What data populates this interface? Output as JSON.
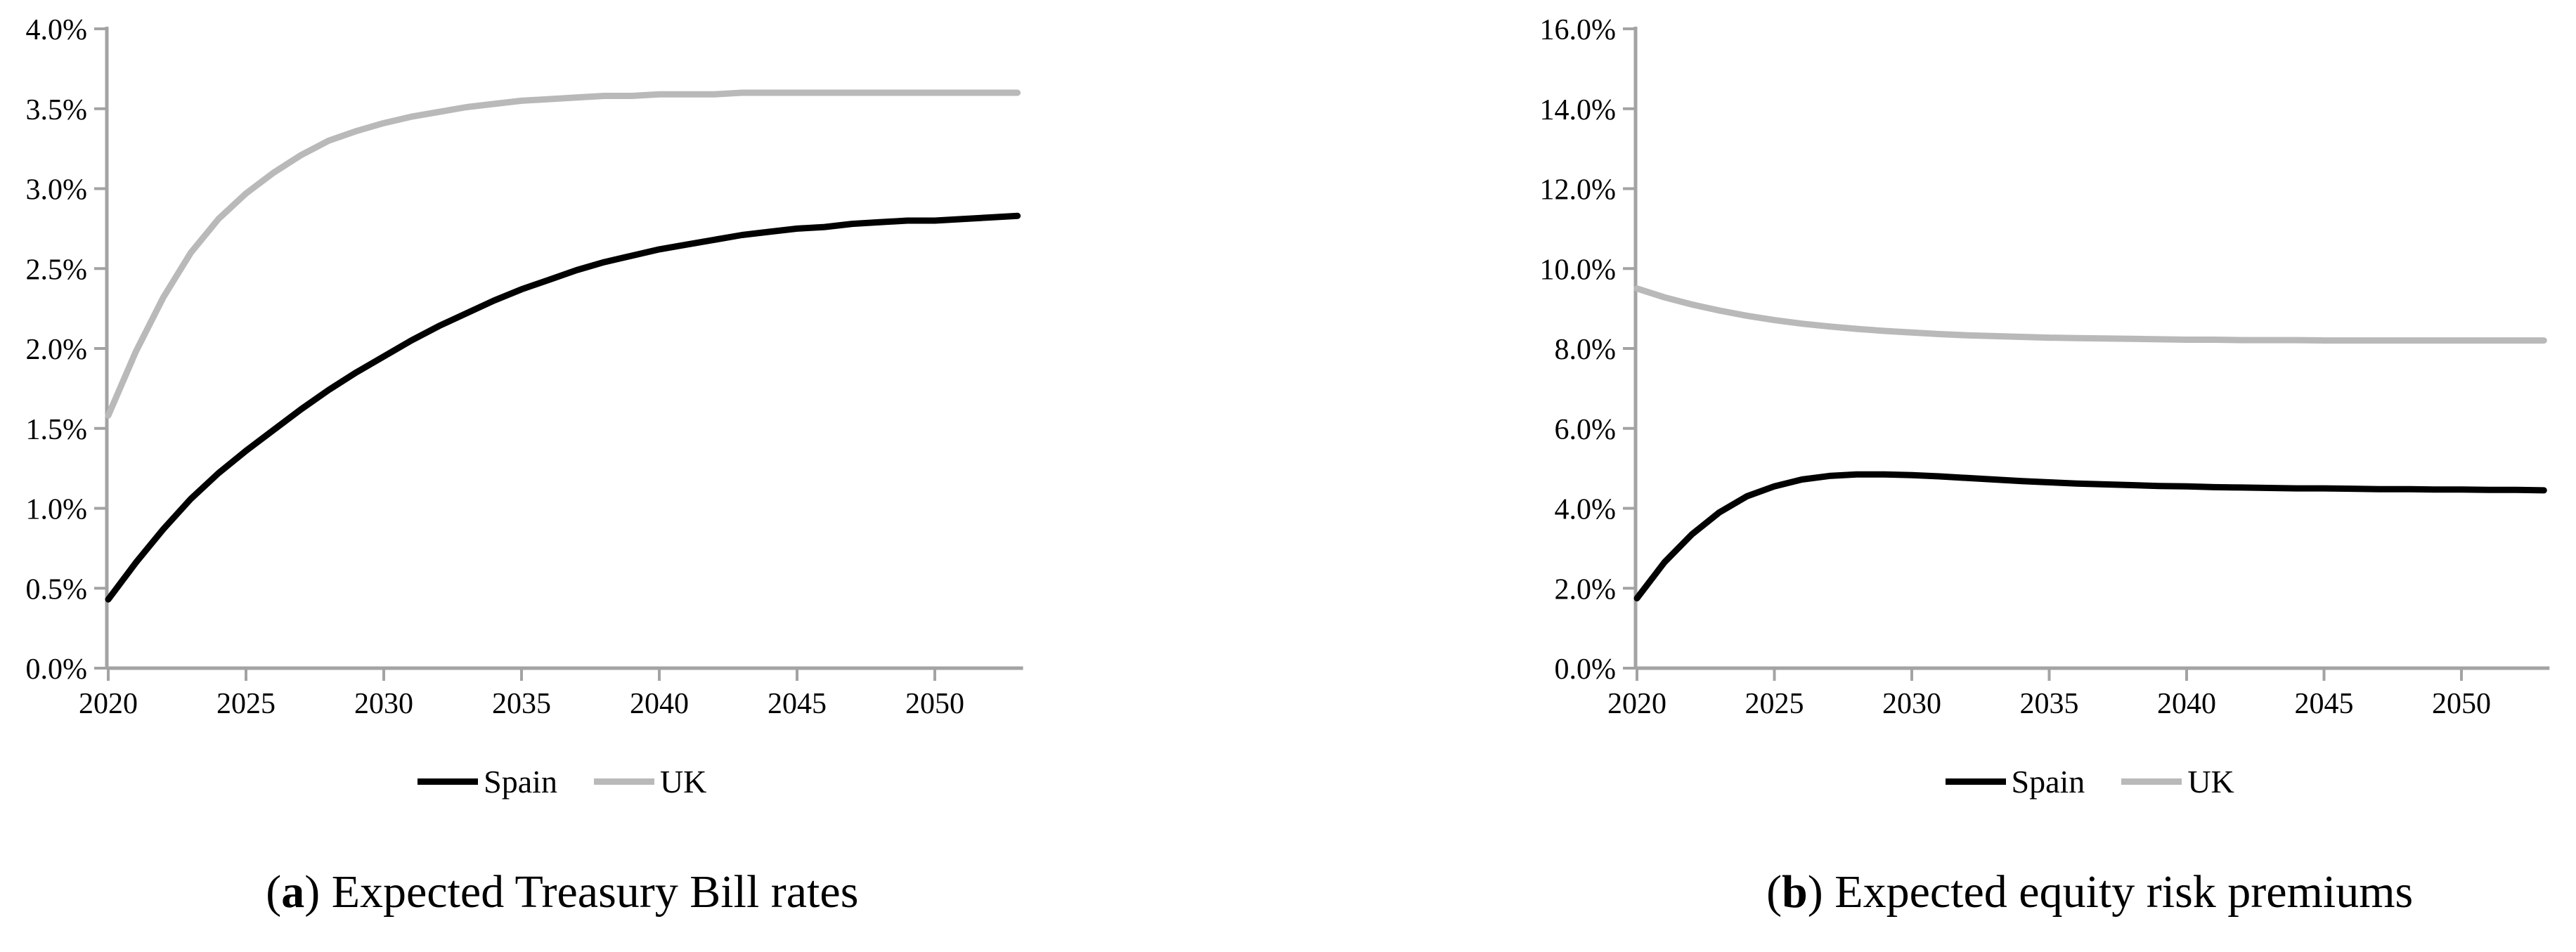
{
  "figure": {
    "panels": [
      {
        "caption_open": "(",
        "caption_marker": "a",
        "caption_close": ")",
        "caption_text": " Expected Treasury Bill rates"
      },
      {
        "caption_open": "(",
        "caption_marker": "b",
        "caption_close": ")",
        "caption_text": " Expected equity risk premiums"
      }
    ],
    "colors": {
      "spain_line": "#000000",
      "uk_line": "#b9b9b9",
      "axis": "#a3a3a3",
      "text": "#000000",
      "background": "#ffffff"
    }
  },
  "chart_data": [
    {
      "type": "line",
      "title": "(a) Expected Treasury Bill rates",
      "xlabel": "",
      "ylabel": "",
      "grid": false,
      "legend_position": "bottom",
      "x_start": 2020,
      "x_end": 2053,
      "x": [
        2020,
        2021,
        2022,
        2023,
        2024,
        2025,
        2026,
        2027,
        2028,
        2029,
        2030,
        2031,
        2032,
        2033,
        2034,
        2035,
        2036,
        2037,
        2038,
        2039,
        2040,
        2041,
        2042,
        2043,
        2044,
        2045,
        2046,
        2047,
        2048,
        2049,
        2050,
        2051,
        2052,
        2053
      ],
      "series": [
        {
          "name": "Spain",
          "color": "#000000",
          "values": [
            0.43,
            0.66,
            0.87,
            1.06,
            1.22,
            1.36,
            1.49,
            1.62,
            1.74,
            1.85,
            1.95,
            2.05,
            2.14,
            2.22,
            2.3,
            2.37,
            2.43,
            2.49,
            2.54,
            2.58,
            2.62,
            2.65,
            2.68,
            2.71,
            2.73,
            2.75,
            2.76,
            2.78,
            2.79,
            2.8,
            2.8,
            2.81,
            2.82,
            2.83
          ]
        },
        {
          "name": "UK",
          "color": "#b9b9b9",
          "values": [
            1.58,
            1.98,
            2.32,
            2.6,
            2.81,
            2.97,
            3.1,
            3.21,
            3.3,
            3.36,
            3.41,
            3.45,
            3.48,
            3.51,
            3.53,
            3.55,
            3.56,
            3.57,
            3.58,
            3.58,
            3.59,
            3.59,
            3.59,
            3.6,
            3.6,
            3.6,
            3.6,
            3.6,
            3.6,
            3.6,
            3.6,
            3.6,
            3.6,
            3.6
          ]
        }
      ],
      "ylim": [
        0,
        4
      ],
      "yticks": [
        0,
        0.5,
        1.0,
        1.5,
        2.0,
        2.5,
        3.0,
        3.5,
        4.0
      ],
      "ytick_labels": [
        "0.0%",
        "0.5%",
        "1.0%",
        "1.5%",
        "2.0%",
        "2.5%",
        "3.0%",
        "3.5%",
        "4.0%"
      ],
      "xticks": [
        2020,
        2025,
        2030,
        2035,
        2040,
        2045,
        2050
      ],
      "xtick_labels": [
        "2020",
        "2025",
        "2030",
        "2035",
        "2040",
        "2045",
        "2050"
      ]
    },
    {
      "type": "line",
      "title": "(b) Expected equity risk premiums",
      "xlabel": "",
      "ylabel": "",
      "grid": false,
      "legend_position": "bottom",
      "x_start": 2020,
      "x_end": 2053,
      "x": [
        2020,
        2021,
        2022,
        2023,
        2024,
        2025,
        2026,
        2027,
        2028,
        2029,
        2030,
        2031,
        2032,
        2033,
        2034,
        2035,
        2036,
        2037,
        2038,
        2039,
        2040,
        2041,
        2042,
        2043,
        2044,
        2045,
        2046,
        2047,
        2048,
        2049,
        2050,
        2051,
        2052,
        2053
      ],
      "series": [
        {
          "name": "Spain",
          "color": "#000000",
          "values": [
            1.75,
            2.65,
            3.35,
            3.9,
            4.3,
            4.55,
            4.72,
            4.81,
            4.85,
            4.85,
            4.83,
            4.8,
            4.76,
            4.72,
            4.68,
            4.65,
            4.62,
            4.6,
            4.58,
            4.56,
            4.55,
            4.53,
            4.52,
            4.51,
            4.5,
            4.5,
            4.49,
            4.48,
            4.48,
            4.47,
            4.47,
            4.46,
            4.46,
            4.45
          ]
        },
        {
          "name": "UK",
          "color": "#b9b9b9",
          "values": [
            9.5,
            9.28,
            9.1,
            8.95,
            8.82,
            8.71,
            8.62,
            8.55,
            8.49,
            8.44,
            8.4,
            8.36,
            8.33,
            8.31,
            8.29,
            8.27,
            8.26,
            8.25,
            8.24,
            8.23,
            8.22,
            8.22,
            8.21,
            8.21,
            8.21,
            8.2,
            8.2,
            8.2,
            8.2,
            8.2,
            8.2,
            8.2,
            8.2,
            8.2
          ]
        }
      ],
      "ylim": [
        0,
        16
      ],
      "yticks": [
        0,
        2,
        4,
        6,
        8,
        10,
        12,
        14,
        16
      ],
      "ytick_labels": [
        "0.0%",
        "2.0%",
        "4.0%",
        "6.0%",
        "8.0%",
        "10.0%",
        "12.0%",
        "14.0%",
        "16.0%"
      ],
      "xticks": [
        2020,
        2025,
        2030,
        2035,
        2040,
        2045,
        2050
      ],
      "xtick_labels": [
        "2020",
        "2025",
        "2030",
        "2035",
        "2040",
        "2045",
        "2050"
      ]
    }
  ]
}
